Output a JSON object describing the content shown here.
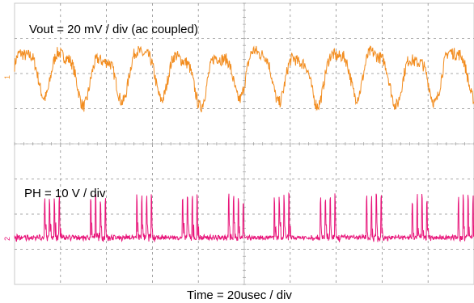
{
  "chart_data": {
    "type": "line",
    "title": "",
    "xlabel": "Time = 20usec / div",
    "ylabel": "",
    "grid": true,
    "x_divisions": 10,
    "y_divisions": 8,
    "annotations": [
      "Vout = 20 mV / div (ac coupled)",
      "PH = 10 V / div"
    ],
    "channel_markers": [
      "1",
      "2"
    ],
    "series": [
      {
        "name": "Vout",
        "color": "#f28c1e",
        "units": "mV",
        "scale_per_div": 20,
        "coupling": "ac",
        "approx_peak_to_peak": 34,
        "approx_ripple_period_us": 17
      },
      {
        "name": "PH",
        "color": "#e8157a",
        "units": "V",
        "scale_per_div": 10,
        "pulse_bursts": 10,
        "approx_pulse_high": 11,
        "approx_burst_spacing_us": 20
      }
    ]
  }
}
